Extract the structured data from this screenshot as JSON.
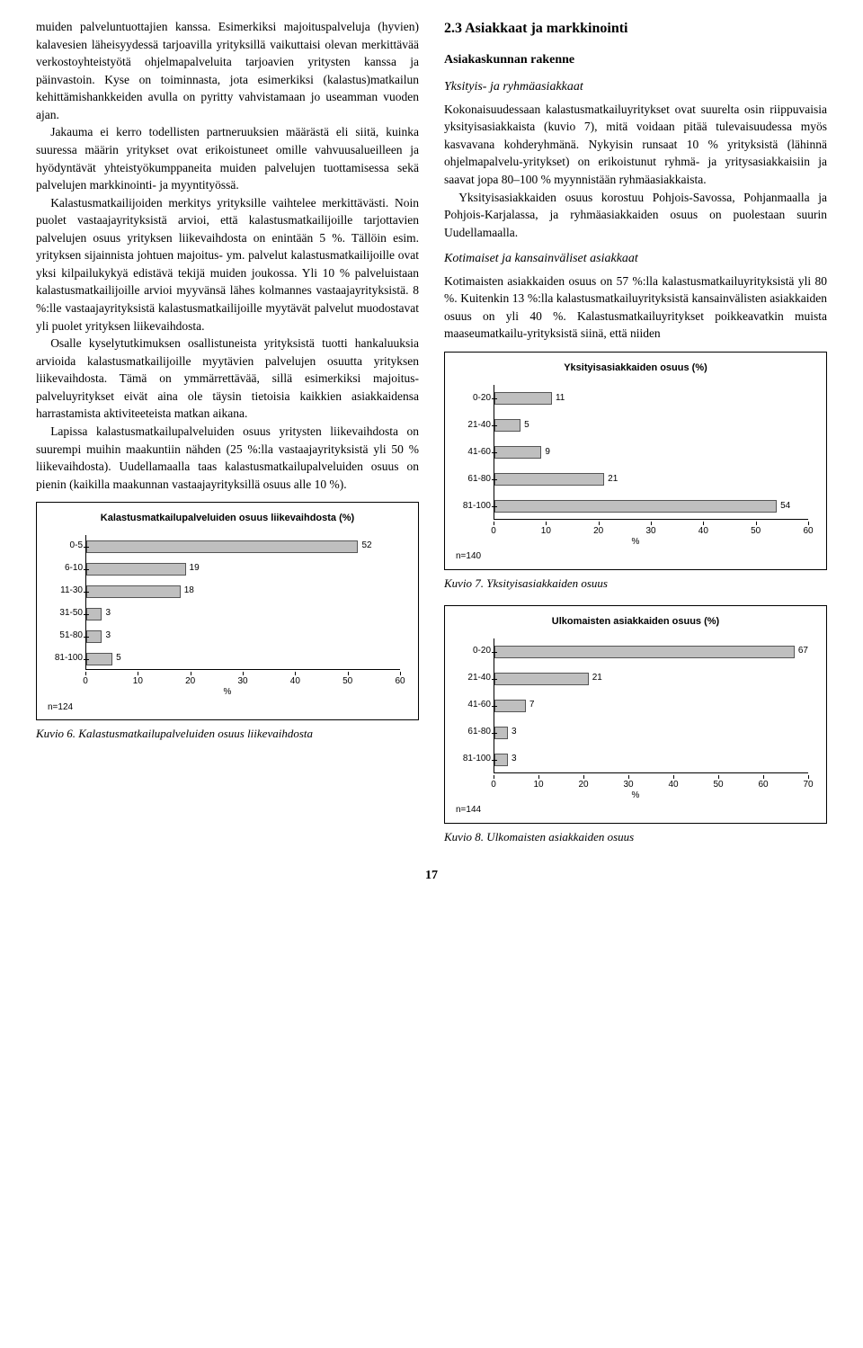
{
  "left": {
    "p1": "muiden palveluntuottajien kanssa. Esimerkiksi majoituspalveluja (hyvien) kalavesien läheisyydessä tarjoavilla yrityksillä vaikuttaisi olevan merkittävää verkostoyhteistyötä ohjelmapalveluita tarjoavien yritysten kanssa ja päinvastoin. Kyse on toiminnasta, jota esimerkiksi (kalastus)matkailun kehittämishankkeiden avulla on pyritty vahvistamaan jo useamman vuoden ajan.",
    "p2": "Jakauma ei kerro todellisten partneruuksien määrästä eli siitä, kuinka suuressa määrin yritykset ovat erikoistuneet omille vahvuusalueilleen ja hyödyntävät yhteistyökumppaneita muiden palvelujen tuottamisessa sekä palvelujen markkinointi- ja myyntityössä.",
    "p3": "Kalastusmatkailijoiden merkitys yrityksille vaihtelee merkittävästi. Noin puolet vastaajayrityksistä arvioi, että kalastusmatkailijoille tarjottavien palvelujen osuus yrityksen liikevaihdosta on enintään 5 %. Tällöin esim. yrityksen sijainnista johtuen majoitus- ym. palvelut kalastusmatkailijoille ovat yksi kilpailukykyä edistävä tekijä muiden joukossa. Yli 10 % palveluistaan kalastusmatkailijoille arvioi myyvänsä lähes kolmannes vastaajayrityksistä. 8 %:lle vastaajayrityksistä kalastusmatkailijoille myytävät palvelut muodostavat yli puolet yrityksen liikevaihdosta.",
    "p4": "Osalle kyselytutkimuksen osallistuneista yrityksistä tuotti hankaluuksia arvioida kalastusmatkailijoille myytävien palvelujen osuutta yrityksen liikevaihdosta. Tämä on ymmärrettävää, sillä esimerkiksi majoitus-palveluyritykset eivät aina ole täysin tietoisia kaikkien asiakkaidensa harrastamista aktiviteeteista matkan aikana.",
    "p5": "Lapissa kalastusmatkailupalveluiden osuus yritysten liikevaihdosta on suurempi muihin maakuntiin nähden (25 %:lla vastaajayrityksistä yli 50 % liikevaihdosta). Uudellamaalla taas kalastusmatkailupalveluiden osuus on pienin (kaikilla maakunnan vastaajayrityksillä osuus alle 10 %)."
  },
  "right": {
    "section": "2.3    Asiakkaat ja markkinointi",
    "sub1": "Asiakaskunnan rakenne",
    "sub1a": "Yksityis- ja ryhmäasiakkaat",
    "p1": "Kokonaisuudessaan kalastusmatkailuyritykset ovat suurelta osin riippuvaisia yksityisasiakkaista (kuvio 7), mitä voidaan pitää tulevaisuudessa myös kasvavana kohderyhmänä. Nykyisin runsaat 10 % yrityksistä (lähinnä ohjelmapalvelu-yritykset) on erikoistunut ryhmä- ja yritysasiakkaisiin ja saavat jopa 80–100 % myynnistään ryhmäasiakkaista.",
    "p2": "Yksityisasiakkaiden osuus korostuu Pohjois-Savossa, Pohjanmaalla ja Pohjois-Karjalassa, ja ryhmäasiakkaiden osuus on puolestaan suurin Uudellamaalla.",
    "sub1b": "Kotimaiset ja kansainväliset asiakkaat",
    "p3": "Kotimaisten asiakkaiden osuus on 57 %:lla kalastusmatkailuyrityksistä yli 80 %. Kuitenkin 13 %:lla kalastusmatkailuyrityksistä kansainvälisten asiakkaiden osuus on yli 40 %. Kalastusmatkailuyritykset poikkeavatkin muista maaseumatkailu-yrityksistä siinä, että niiden"
  },
  "chart6": {
    "title": "Kalastusmatkailupalveluiden osuus liikevaihdosta (%)",
    "categories": [
      "0-5",
      "6-10",
      "11-30",
      "31-50",
      "51-80",
      "81-100"
    ],
    "values": [
      52,
      19,
      18,
      3,
      3,
      5
    ],
    "xmax": 60,
    "xticks": [
      0,
      10,
      20,
      30,
      40,
      50,
      60
    ],
    "n": "n=124",
    "xunit": "%",
    "bar_color": "#bfbfbf",
    "caption": "Kuvio 6. Kalastusmatkailupalveluiden osuus liikevaihdosta"
  },
  "chart7": {
    "title": "Yksityisasiakkaiden osuus (%)",
    "categories": [
      "0-20",
      "21-40",
      "41-60",
      "61-80",
      "81-100"
    ],
    "values": [
      11,
      5,
      9,
      21,
      54
    ],
    "xmax": 60,
    "xticks": [
      0,
      10,
      20,
      30,
      40,
      50,
      60
    ],
    "n": "n=140",
    "xunit": "%",
    "bar_color": "#bfbfbf",
    "caption": "Kuvio 7. Yksityisasiakkaiden osuus"
  },
  "chart8": {
    "title": "Ulkomaisten asiakkaiden osuus (%)",
    "categories": [
      "0-20",
      "21-40",
      "41-60",
      "61-80",
      "81-100"
    ],
    "values": [
      67,
      21,
      7,
      3,
      3
    ],
    "xmax": 70,
    "xticks": [
      0,
      10,
      20,
      30,
      40,
      50,
      60,
      70
    ],
    "n": "n=144",
    "xunit": "%",
    "bar_color": "#bfbfbf",
    "caption": "Kuvio 8. Ulkomaisten asiakkaiden osuus"
  },
  "pagenum": "17"
}
